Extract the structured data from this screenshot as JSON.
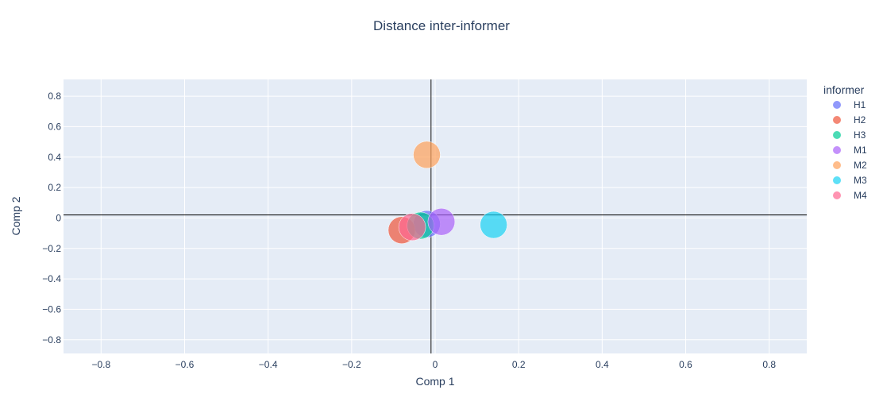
{
  "chart_data": {
    "type": "scatter",
    "title": "Distance inter-informer",
    "xlabel": "Comp 1",
    "ylabel": "Comp 2",
    "xlim": [
      -0.89,
      0.89
    ],
    "ylim": [
      -0.89,
      0.91
    ],
    "xticks": [
      -0.8,
      -0.6,
      -0.4,
      -0.2,
      0,
      0.2,
      0.4,
      0.6,
      0.8
    ],
    "yticks": [
      -0.8,
      -0.6,
      -0.4,
      -0.2,
      0,
      0.2,
      0.4,
      0.6,
      0.8
    ],
    "xtick_labels": [
      "−0.8",
      "−0.6",
      "−0.4",
      "−0.2",
      "0",
      "0.2",
      "0.4",
      "0.6",
      "0.8"
    ],
    "ytick_labels": [
      "−0.8",
      "−0.6",
      "−0.4",
      "−0.2",
      "0",
      "0.2",
      "0.4",
      "0.6",
      "0.8"
    ],
    "grid": true,
    "reference_lines": {
      "x": -0.01,
      "y": 0.02
    },
    "legend_title": "informer",
    "legend_position": "right",
    "series": [
      {
        "name": "H1",
        "color": "#636efa",
        "x": -0.02,
        "y": -0.04
      },
      {
        "name": "H2",
        "color": "#ef553b",
        "x": -0.08,
        "y": -0.08
      },
      {
        "name": "H3",
        "color": "#00cc96",
        "x": -0.035,
        "y": -0.05
      },
      {
        "name": "M1",
        "color": "#ab63fa",
        "x": 0.015,
        "y": -0.025
      },
      {
        "name": "M2",
        "color": "#ffa15a",
        "x": -0.02,
        "y": 0.415
      },
      {
        "name": "M3",
        "color": "#19d3f3",
        "x": 0.14,
        "y": -0.045
      },
      {
        "name": "M4",
        "color": "#ff6692",
        "x": -0.055,
        "y": -0.06
      }
    ]
  }
}
